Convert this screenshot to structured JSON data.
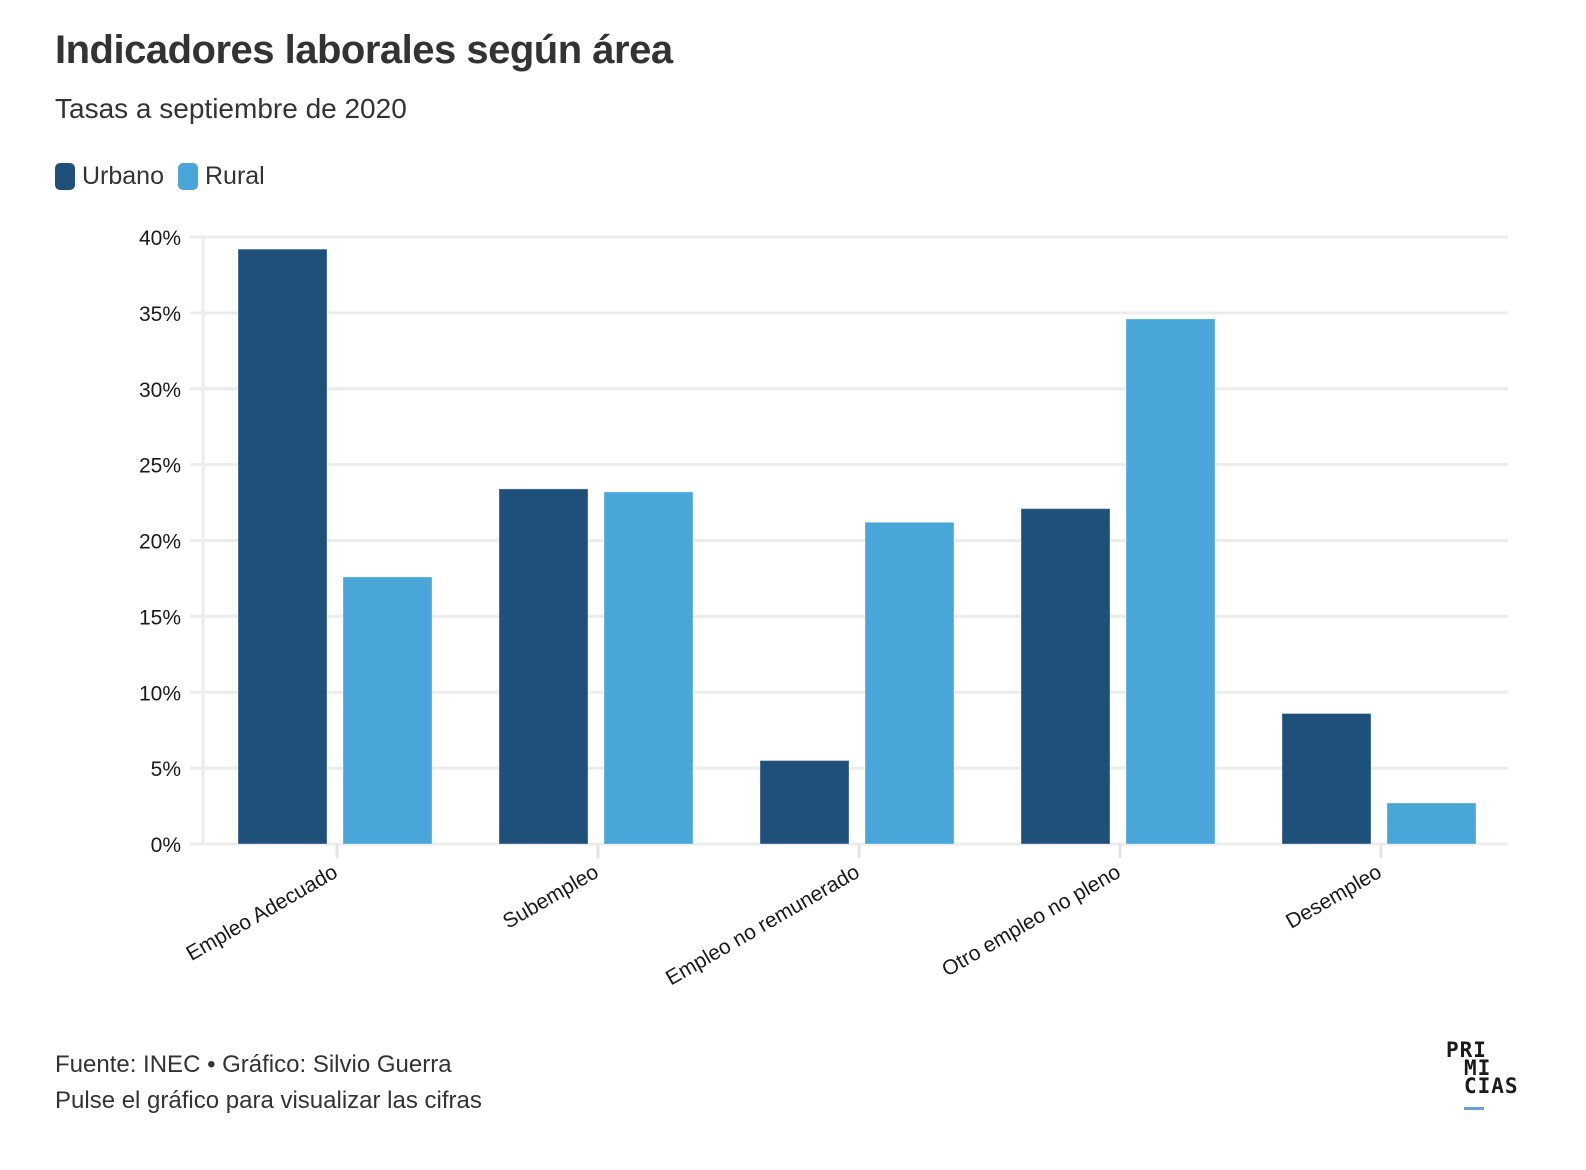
{
  "header": {
    "title": "Indicadores laborales según área",
    "subtitle": "Tasas a septiembre de 2020"
  },
  "legend": [
    {
      "label": "Urbano",
      "color": "#1f5079"
    },
    {
      "label": "Rural",
      "color": "#48a6d9"
    }
  ],
  "chart_data": {
    "type": "bar",
    "title": "Indicadores laborales según área",
    "subtitle": "Tasas a septiembre de 2020",
    "xlabel": "",
    "ylabel": "",
    "categories": [
      "Empleo Adecuado",
      "Subempleo",
      "Empleo no remunerado",
      "Otro empleo no pleno",
      "Desempleo"
    ],
    "series": [
      {
        "name": "Urbano",
        "color": "#1f5079",
        "values": [
          39.2,
          23.4,
          5.5,
          22.1,
          8.6
        ]
      },
      {
        "name": "Rural",
        "color": "#48a6d9",
        "values": [
          17.6,
          23.2,
          21.2,
          34.6,
          2.7
        ]
      }
    ],
    "ylim": [
      0,
      40
    ],
    "yticks": [
      0,
      5,
      10,
      15,
      20,
      25,
      30,
      35,
      40
    ],
    "ytick_labels": [
      "0%",
      "5%",
      "10%",
      "15%",
      "20%",
      "25%",
      "30%",
      "35%",
      "40%"
    ],
    "grid": true,
    "legend_position": "top-left"
  },
  "footer": {
    "source": "Fuente: INEC • Gráfico: Silvio Guerra",
    "note": "Pulse el gráfico para visualizar las cifras"
  },
  "logo": {
    "line1": "PRI",
    "line2": "MI",
    "line3": "CIAS"
  }
}
